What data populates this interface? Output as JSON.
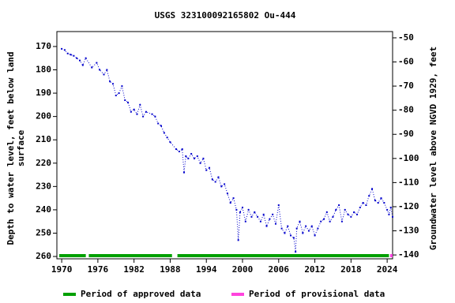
{
  "chart_data": {
    "type": "scatter",
    "title": "USGS 323100092165802 Ou-444",
    "ylabel_lines": [
      "Depth to water level, feet below land",
      "surface"
    ],
    "y2label": "Groundwater level above NGVD 1929, feet",
    "color": "#0000cc",
    "x": [
      1970.0,
      1970.5,
      1971,
      1971.5,
      1972,
      1972.5,
      1973,
      1973.5,
      1974,
      1975,
      1975.8,
      1976.3,
      1977,
      1977.5,
      1978,
      1978.5,
      1979,
      1979.5,
      1980,
      1980.5,
      1981,
      1981.5,
      1982,
      1982.5,
      1983,
      1983.5,
      1984,
      1985,
      1985.5,
      1986,
      1986.5,
      1987,
      1987.5,
      1988,
      1989,
      1989.5,
      1990,
      1990.3,
      1990.6,
      1991,
      1991.5,
      1992,
      1992.5,
      1993,
      1993.5,
      1994,
      1994.5,
      1995,
      1995.5,
      1996,
      1996.5,
      1997,
      1997.5,
      1998,
      1998.5,
      1999,
      1999.3,
      1999.6,
      2000,
      2000.5,
      2001,
      2001.5,
      2002,
      2002.5,
      2003,
      2003.5,
      2004,
      2004.5,
      2005,
      2005.5,
      2006,
      2006.5,
      2007,
      2007.5,
      2008,
      2008.5,
      2008.8,
      2009,
      2009.5,
      2010,
      2010.5,
      2011,
      2011.5,
      2012,
      2012.5,
      2013,
      2013.5,
      2014,
      2014.5,
      2015,
      2015.5,
      2016,
      2016.5,
      2017,
      2017.5,
      2018,
      2018.5,
      2019,
      2019.5,
      2020,
      2020.5,
      2021,
      2021.5,
      2022,
      2022.5,
      2023,
      2023.5,
      2024,
      2024.3,
      2024.6,
      2024.9
    ],
    "values": [
      171,
      171.5,
      173,
      173.5,
      174,
      175,
      176,
      178,
      175,
      179,
      177,
      180,
      182,
      180,
      185,
      186,
      191,
      190,
      187,
      193,
      194,
      198,
      197,
      199,
      195,
      200,
      198,
      199,
      200,
      203,
      204,
      207,
      209,
      211,
      214,
      215,
      214,
      224,
      217,
      218,
      216,
      218,
      217,
      220,
      218,
      223,
      222,
      227,
      228,
      226,
      230,
      229,
      233,
      237,
      235,
      240,
      253,
      241,
      239,
      245,
      240,
      243,
      241,
      243,
      245,
      242,
      247,
      244,
      242,
      246,
      238,
      248,
      250,
      247,
      251,
      252,
      258,
      248,
      245,
      250,
      247,
      249,
      247,
      251,
      248,
      245,
      244,
      241,
      245,
      243,
      240,
      238,
      245,
      240,
      242,
      243,
      241,
      242,
      239,
      237,
      238,
      234,
      231,
      236,
      237,
      235,
      237,
      240,
      242,
      239,
      243
    ],
    "xlim": [
      1969.2,
      2024.9
    ],
    "xticks": [
      1970,
      1976,
      1982,
      1988,
      1994,
      2000,
      2006,
      2012,
      2018,
      2024
    ],
    "ylim": [
      261,
      163.6
    ],
    "yticks": [
      170,
      180,
      190,
      200,
      210,
      220,
      230,
      240,
      250,
      260
    ],
    "y2lim": [
      -141.6,
      -47.4
    ],
    "y2ticks": [
      -50,
      -60,
      -70,
      -80,
      -90,
      -100,
      -110,
      -120,
      -130,
      -140
    ],
    "periods": [
      {
        "name": "Period of approved data",
        "color": "#00a000",
        "ranges": [
          [
            1969.6,
            1974
          ],
          [
            1974.5,
            1988.3
          ],
          [
            1989.2,
            2024.3
          ]
        ]
      },
      {
        "name": "Period of provisional data",
        "color": "#ff44dd",
        "ranges": [
          [
            2024.5,
            2024.9
          ]
        ]
      }
    ]
  }
}
